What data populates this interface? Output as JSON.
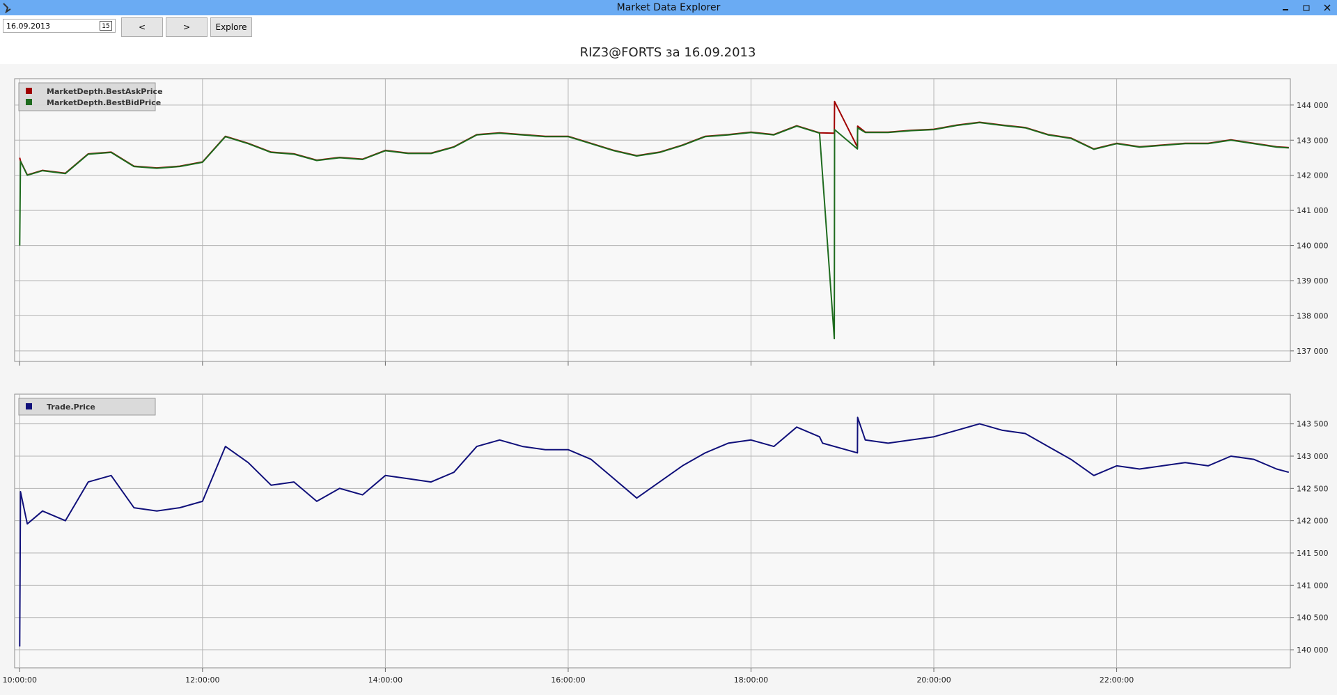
{
  "window": {
    "title": "Market Data Explorer"
  },
  "toolbar": {
    "date": "16.09.2013",
    "calendar_icon": "15",
    "buttons": [
      "<",
      ">",
      "Explore"
    ]
  },
  "chart_data": [
    {
      "type": "line",
      "title": "RIZ3@FORTS за 16.09.2013",
      "grid": true,
      "legend": "top-left",
      "xlim": [
        "09:56:40",
        "23:54:00"
      ],
      "ylim": [
        136700,
        144750
      ],
      "yticks": [
        {
          "value": 137000,
          "label": "137 000"
        },
        {
          "value": 138000,
          "label": "138 000"
        },
        {
          "value": 139000,
          "label": "139 000"
        },
        {
          "value": 140000,
          "label": "140 000"
        },
        {
          "value": 141000,
          "label": "141 000"
        },
        {
          "value": 142000,
          "label": "142 000"
        },
        {
          "value": 143000,
          "label": "143 000"
        },
        {
          "value": 144000,
          "label": "144 000"
        }
      ],
      "x": [
        "10:00:00",
        "10:00:30",
        "10:05:00",
        "10:15:00",
        "10:30:00",
        "10:45:00",
        "11:00:00",
        "11:15:00",
        "11:30:00",
        "11:45:00",
        "12:00:00",
        "12:15:00",
        "12:30:00",
        "12:45:00",
        "13:00:00",
        "13:15:00",
        "13:30:00",
        "13:45:00",
        "14:00:00",
        "14:15:00",
        "14:30:00",
        "14:45:00",
        "15:00:00",
        "15:15:00",
        "15:30:00",
        "15:45:00",
        "16:00:00",
        "16:15:00",
        "16:30:00",
        "16:45:00",
        "17:00:00",
        "17:15:00",
        "17:30:00",
        "17:45:00",
        "18:00:00",
        "18:15:00",
        "18:30:00",
        "18:45:00",
        "18:54:40",
        "18:54:50",
        "19:09:50",
        "19:10:00",
        "19:15:00",
        "19:30:00",
        "19:45:00",
        "20:00:00",
        "20:15:00",
        "20:30:00",
        "20:45:00",
        "21:00:00",
        "21:15:00",
        "21:30:00",
        "21:45:00",
        "22:00:00",
        "22:15:00",
        "22:30:00",
        "22:45:00",
        "23:00:00",
        "23:15:00",
        "23:30:00",
        "23:45:00",
        "23:53:00"
      ],
      "series": [
        {
          "name": "MarketDepth.BestAskPrice",
          "color": "#a00000",
          "values": [
            142500,
            142410,
            142010,
            142140,
            142060,
            142610,
            142660,
            142260,
            142210,
            142260,
            142380,
            143110,
            142910,
            142660,
            142610,
            142430,
            142510,
            142460,
            142710,
            142630,
            142630,
            142810,
            143160,
            143210,
            143160,
            143110,
            143110,
            142910,
            142710,
            142560,
            142660,
            142860,
            143110,
            143160,
            143230,
            143160,
            143410,
            143210,
            143200,
            144100,
            142800,
            143400,
            143230,
            143230,
            143280,
            143310,
            143430,
            143510,
            143430,
            143360,
            143160,
            143060,
            142750,
            142910,
            142810,
            142860,
            142910,
            142910,
            143010,
            142910,
            142810,
            142790
          ]
        },
        {
          "name": "MarketDepth.BestBidPrice",
          "color": "#1e6b1e",
          "values": [
            140000,
            142400,
            142000,
            142130,
            142050,
            142600,
            142650,
            142250,
            142200,
            142250,
            142370,
            143100,
            142900,
            142650,
            142600,
            142420,
            142500,
            142450,
            142700,
            142620,
            142620,
            142800,
            143150,
            143200,
            143150,
            143100,
            143100,
            142900,
            142700,
            142550,
            142650,
            142850,
            143100,
            143150,
            143220,
            143150,
            143400,
            143200,
            137350,
            143300,
            142750,
            143350,
            143220,
            143220,
            143270,
            143300,
            143420,
            143500,
            143420,
            143350,
            143150,
            143050,
            142740,
            142900,
            142800,
            142850,
            142900,
            142900,
            143000,
            142900,
            142800,
            142780
          ]
        }
      ]
    },
    {
      "type": "line",
      "grid": true,
      "legend": "top-left",
      "xlim": [
        "09:56:40",
        "23:54:00"
      ],
      "xticks": [
        "10:00:00",
        "12:00:00",
        "14:00:00",
        "16:00:00",
        "18:00:00",
        "20:00:00",
        "22:00:00"
      ],
      "ylim": [
        139720,
        143960
      ],
      "yticks": [
        {
          "value": 140000,
          "label": "140 000"
        },
        {
          "value": 140500,
          "label": "140 500"
        },
        {
          "value": 141000,
          "label": "141 000"
        },
        {
          "value": 141500,
          "label": "141 500"
        },
        {
          "value": 142000,
          "label": "142 000"
        },
        {
          "value": 142500,
          "label": "142 500"
        },
        {
          "value": 143000,
          "label": "143 000"
        },
        {
          "value": 143500,
          "label": "143 500"
        }
      ],
      "x": [
        "10:00:00",
        "10:00:30",
        "10:05:00",
        "10:15:00",
        "10:30:00",
        "10:45:00",
        "11:00:00",
        "11:15:00",
        "11:30:00",
        "11:45:00",
        "12:00:00",
        "12:15:00",
        "12:30:00",
        "12:45:00",
        "13:00:00",
        "13:15:00",
        "13:30:00",
        "13:45:00",
        "14:00:00",
        "14:15:00",
        "14:30:00",
        "14:45:00",
        "15:00:00",
        "15:15:00",
        "15:30:00",
        "15:45:00",
        "16:00:00",
        "16:15:00",
        "16:30:00",
        "16:45:00",
        "17:00:00",
        "17:15:00",
        "17:30:00",
        "17:45:00",
        "18:00:00",
        "18:15:00",
        "18:30:00",
        "18:45:00",
        "18:47:00",
        "19:09:50",
        "19:10:00",
        "19:15:00",
        "19:30:00",
        "19:45:00",
        "20:00:00",
        "20:15:00",
        "20:30:00",
        "20:45:00",
        "21:00:00",
        "21:15:00",
        "21:30:00",
        "21:45:00",
        "22:00:00",
        "22:15:00",
        "22:30:00",
        "22:45:00",
        "23:00:00",
        "23:15:00",
        "23:30:00",
        "23:45:00",
        "23:53:00"
      ],
      "series": [
        {
          "name": "Trade.Price",
          "color": "#10107a",
          "values": [
            140050,
            142450,
            141950,
            142150,
            142000,
            142600,
            142700,
            142200,
            142150,
            142200,
            142300,
            143150,
            142900,
            142550,
            142600,
            142300,
            142500,
            142400,
            142700,
            142650,
            142600,
            142750,
            143150,
            143250,
            143150,
            143100,
            143100,
            142950,
            142650,
            142350,
            142600,
            142850,
            143050,
            143200,
            143250,
            143150,
            143450,
            143300,
            143200,
            143050,
            143600,
            143250,
            143200,
            143250,
            143300,
            143400,
            143500,
            143400,
            143350,
            143150,
            142950,
            142700,
            142850,
            142800,
            142850,
            142900,
            142850,
            143000,
            142950,
            142800,
            142750
          ]
        }
      ]
    }
  ]
}
